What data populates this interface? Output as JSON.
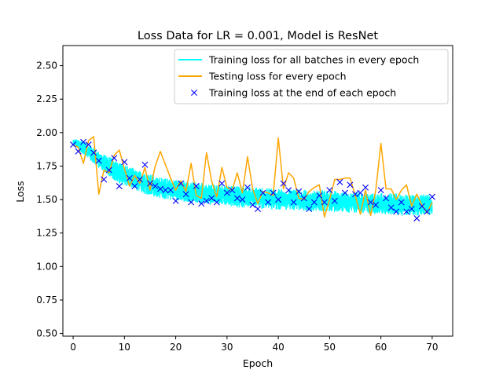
{
  "chart_data": {
    "type": "line",
    "title": "Loss Data for LR = 0.001, Model is ResNet",
    "xlabel": "Epoch",
    "ylabel": "Loss",
    "xlim": [
      -2,
      74
    ],
    "ylim": [
      0.48,
      2.65
    ],
    "xticks": [
      0,
      10,
      20,
      30,
      40,
      50,
      60,
      70
    ],
    "yticks": [
      0.5,
      0.75,
      1.0,
      1.25,
      1.5,
      1.75,
      2.0,
      2.25,
      2.5
    ],
    "ytick_labels": [
      "0.50",
      "0.75",
      "1.00",
      "1.25",
      "1.50",
      "1.75",
      "2.00",
      "2.25",
      "2.50"
    ],
    "legend_position": "top-right",
    "grid": false,
    "series": [
      {
        "name": "Training loss for all batches in every epoch",
        "kind": "band",
        "color": "#00ffff",
        "x": [
          0,
          2,
          4,
          6,
          8,
          10,
          12,
          14,
          16,
          18,
          20,
          22,
          24,
          26,
          28,
          30,
          32,
          34,
          36,
          38,
          40,
          42,
          44,
          46,
          48,
          50,
          52,
          54,
          56,
          58,
          60,
          62,
          64,
          66,
          68,
          70
        ],
        "center": [
          1.93,
          1.89,
          1.83,
          1.77,
          1.72,
          1.68,
          1.65,
          1.62,
          1.6,
          1.58,
          1.57,
          1.56,
          1.55,
          1.54,
          1.54,
          1.53,
          1.52,
          1.52,
          1.51,
          1.51,
          1.5,
          1.5,
          1.5,
          1.49,
          1.49,
          1.49,
          1.48,
          1.48,
          1.48,
          1.47,
          1.47,
          1.47,
          1.46,
          1.46,
          1.46,
          1.46
        ],
        "spread": [
          0.03,
          0.05,
          0.06,
          0.07,
          0.08,
          0.08,
          0.08,
          0.08,
          0.08,
          0.08,
          0.08,
          0.08,
          0.08,
          0.08,
          0.08,
          0.08,
          0.08,
          0.08,
          0.08,
          0.08,
          0.08,
          0.08,
          0.08,
          0.08,
          0.08,
          0.08,
          0.08,
          0.08,
          0.08,
          0.08,
          0.08,
          0.08,
          0.08,
          0.08,
          0.08,
          0.08
        ]
      },
      {
        "name": "Testing loss for every epoch",
        "kind": "line",
        "color": "#ffa500",
        "x": [
          0,
          1,
          2,
          3,
          4,
          5,
          6,
          7,
          8,
          9,
          10,
          11,
          12,
          13,
          14,
          15,
          16,
          17,
          18,
          19,
          20,
          21,
          22,
          23,
          24,
          25,
          26,
          27,
          28,
          29,
          30,
          31,
          32,
          33,
          34,
          35,
          36,
          37,
          38,
          39,
          40,
          41,
          42,
          43,
          44,
          45,
          46,
          47,
          48,
          49,
          50,
          51,
          52,
          53,
          54,
          55,
          56,
          57,
          58,
          59,
          60,
          61,
          62,
          63,
          64,
          65,
          66,
          67,
          68,
          69,
          70
        ],
        "y": [
          1.91,
          1.89,
          1.77,
          1.94,
          1.97,
          1.54,
          1.72,
          1.7,
          1.83,
          1.87,
          1.73,
          1.6,
          1.68,
          1.62,
          1.74,
          1.57,
          1.75,
          1.86,
          1.76,
          1.66,
          1.57,
          1.64,
          1.56,
          1.77,
          1.53,
          1.51,
          1.85,
          1.64,
          1.52,
          1.74,
          1.59,
          1.57,
          1.7,
          1.55,
          1.82,
          1.58,
          1.47,
          1.56,
          1.55,
          1.53,
          1.96,
          1.58,
          1.7,
          1.66,
          1.51,
          1.5,
          1.56,
          1.59,
          1.61,
          1.37,
          1.5,
          1.65,
          1.65,
          1.66,
          1.66,
          1.53,
          1.39,
          1.57,
          1.38,
          1.57,
          1.92,
          1.58,
          1.58,
          1.5,
          1.57,
          1.61,
          1.45,
          1.54,
          1.46,
          1.4,
          1.48
        ]
      },
      {
        "name": "Training loss at the end of each epoch",
        "kind": "scatter",
        "marker": "x",
        "color": "#0000ff",
        "x": [
          0,
          1,
          2,
          3,
          4,
          5,
          6,
          7,
          8,
          9,
          10,
          11,
          12,
          13,
          14,
          15,
          16,
          17,
          18,
          19,
          20,
          21,
          22,
          23,
          24,
          25,
          26,
          27,
          28,
          29,
          30,
          31,
          32,
          33,
          34,
          35,
          36,
          37,
          38,
          39,
          40,
          41,
          42,
          43,
          44,
          45,
          46,
          47,
          48,
          49,
          50,
          51,
          52,
          53,
          54,
          55,
          56,
          57,
          58,
          59,
          60,
          61,
          62,
          63,
          64,
          65,
          66,
          67,
          68,
          69,
          70
        ],
        "y": [
          1.91,
          1.86,
          1.93,
          1.91,
          1.85,
          1.79,
          1.65,
          1.72,
          1.81,
          1.6,
          1.78,
          1.66,
          1.6,
          1.65,
          1.76,
          1.62,
          1.6,
          1.58,
          1.57,
          1.57,
          1.49,
          1.62,
          1.54,
          1.48,
          1.6,
          1.47,
          1.49,
          1.51,
          1.48,
          1.62,
          1.55,
          1.57,
          1.51,
          1.5,
          1.59,
          1.46,
          1.43,
          1.55,
          1.48,
          1.55,
          1.5,
          1.62,
          1.57,
          1.48,
          1.56,
          1.51,
          1.43,
          1.48,
          1.53,
          1.48,
          1.57,
          1.49,
          1.63,
          1.55,
          1.61,
          1.54,
          1.55,
          1.59,
          1.48,
          1.46,
          1.57,
          1.51,
          1.44,
          1.41,
          1.48,
          1.41,
          1.43,
          1.36,
          1.45,
          1.41,
          1.52
        ]
      }
    ]
  }
}
